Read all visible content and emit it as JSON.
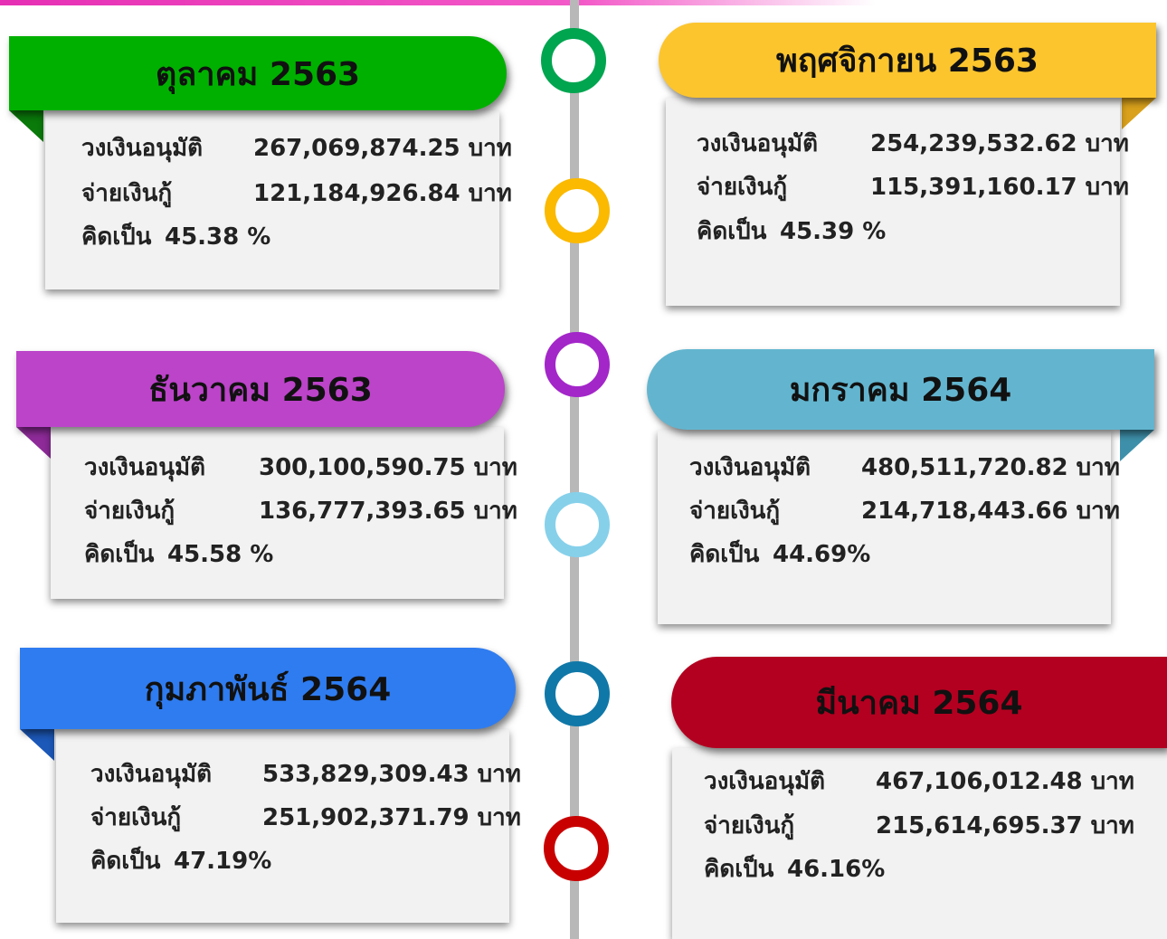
{
  "cards": [
    {
      "title": "ตุลาคม 2563",
      "rows": [
        [
          "วงเงินอนุมัติ",
          "267,069,874.25 บาท"
        ],
        [
          "จ่ายเงินกู้",
          "121,184,926.84 บาท"
        ]
      ],
      "percent": [
        "คิดเป็น",
        "45.38 %"
      ]
    },
    {
      "title": "พฤศจิกายน 2563",
      "rows": [
        [
          "วงเงินอนุมัติ",
          "254,239,532.62 บาท"
        ],
        [
          "จ่ายเงินกู้",
          "115,391,160.17 บาท"
        ]
      ],
      "percent": [
        "คิดเป็น",
        "45.39 %"
      ]
    },
    {
      "title": "ธันวาคม 2563",
      "rows": [
        [
          "วงเงินอนุมัติ",
          "300,100,590.75 บาท"
        ],
        [
          "จ่ายเงินกู้",
          "136,777,393.65 บาท"
        ]
      ],
      "percent": [
        "คิดเป็น",
        "45.58 %"
      ]
    },
    {
      "title": "มกราคม 2564",
      "rows": [
        [
          "วงเงินอนุมัติ",
          "480,511,720.82 บาท"
        ],
        [
          "จ่ายเงินกู้",
          "214,718,443.66 บาท"
        ]
      ],
      "percent": [
        "คิดเป็น",
        "44.69%"
      ]
    },
    {
      "title": "กุมภาพันธ์ 2564",
      "rows": [
        [
          "วงเงินอนุมัติ",
          "533,829,309.43 บาท"
        ],
        [
          "จ่ายเงินกู้",
          "251,902,371.79 บาท"
        ]
      ],
      "percent": [
        "คิดเป็น",
        "47.19%"
      ]
    },
    {
      "title": "มีนาคม 2564",
      "rows": [
        [
          "วงเงินอนุมัติ",
          "467,106,012.48 บาท"
        ],
        [
          "จ่ายเงินกู้",
          "215,614,695.37 บาท"
        ]
      ],
      "percent": [
        "คิดเป็น",
        "46.16%"
      ]
    }
  ]
}
